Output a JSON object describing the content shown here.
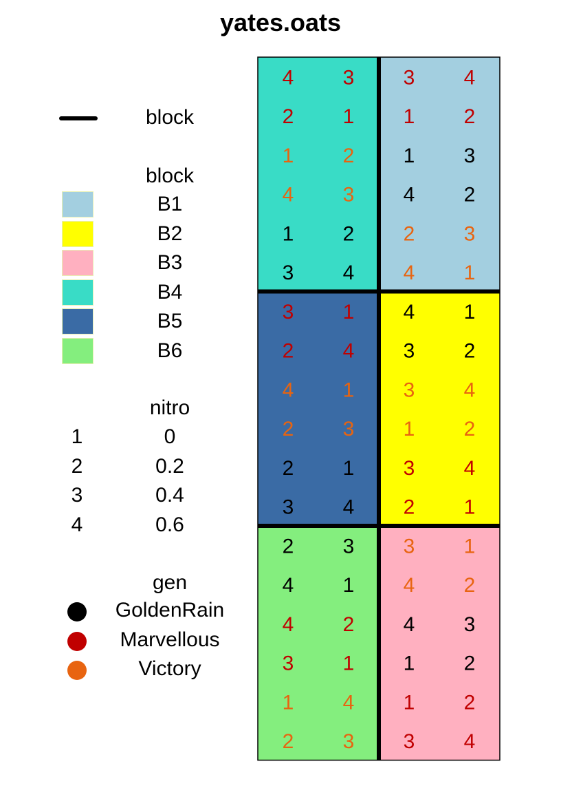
{
  "title": "yates.oats",
  "legend": {
    "block_line": {
      "label": "block"
    },
    "block": {
      "title": "block",
      "items": [
        {
          "label": "B1",
          "color": "#a3cfe0"
        },
        {
          "label": "B2",
          "color": "#ffff00"
        },
        {
          "label": "B3",
          "color": "#ffb0c0"
        },
        {
          "label": "B4",
          "color": "#39dcc6"
        },
        {
          "label": "B5",
          "color": "#3a6ba5"
        },
        {
          "label": "B6",
          "color": "#84ee7e"
        }
      ]
    },
    "nitro": {
      "title": "nitro",
      "items": [
        {
          "code": "1",
          "value": "0"
        },
        {
          "code": "2",
          "value": "0.2"
        },
        {
          "code": "3",
          "value": "0.4"
        },
        {
          "code": "4",
          "value": "0.6"
        }
      ]
    },
    "gen": {
      "title": "gen",
      "items": [
        {
          "label": "GoldenRain",
          "color": "#000000"
        },
        {
          "label": "Marvellous",
          "color": "#c00000"
        },
        {
          "label": "Victory",
          "color": "#e86410"
        }
      ]
    }
  },
  "grid": {
    "blocks": [
      {
        "name": "B4",
        "color": "#39dcc6",
        "cells": [
          [
            "4",
            "M"
          ],
          [
            "3",
            "M"
          ],
          [
            "2",
            "M"
          ],
          [
            "1",
            "M"
          ],
          [
            "1",
            "V"
          ],
          [
            "2",
            "V"
          ],
          [
            "4",
            "V"
          ],
          [
            "3",
            "V"
          ],
          [
            "1",
            "G"
          ],
          [
            "2",
            "G"
          ],
          [
            "3",
            "G"
          ],
          [
            "4",
            "G"
          ]
        ]
      },
      {
        "name": "B1",
        "color": "#a3cfe0",
        "cells": [
          [
            "3",
            "M"
          ],
          [
            "4",
            "M"
          ],
          [
            "1",
            "M"
          ],
          [
            "2",
            "M"
          ],
          [
            "1",
            "G"
          ],
          [
            "3",
            "G"
          ],
          [
            "4",
            "G"
          ],
          [
            "2",
            "G"
          ],
          [
            "2",
            "V"
          ],
          [
            "3",
            "V"
          ],
          [
            "4",
            "V"
          ],
          [
            "1",
            "V"
          ]
        ]
      },
      {
        "name": "B5",
        "color": "#3a6ba5",
        "cells": [
          [
            "3",
            "M"
          ],
          [
            "1",
            "M"
          ],
          [
            "2",
            "M"
          ],
          [
            "4",
            "M"
          ],
          [
            "4",
            "V"
          ],
          [
            "1",
            "V"
          ],
          [
            "2",
            "V"
          ],
          [
            "3",
            "V"
          ],
          [
            "2",
            "G"
          ],
          [
            "1",
            "G"
          ],
          [
            "3",
            "G"
          ],
          [
            "4",
            "G"
          ]
        ]
      },
      {
        "name": "B2",
        "color": "#ffff00",
        "cells": [
          [
            "4",
            "G"
          ],
          [
            "1",
            "G"
          ],
          [
            "3",
            "G"
          ],
          [
            "2",
            "G"
          ],
          [
            "3",
            "V"
          ],
          [
            "4",
            "V"
          ],
          [
            "1",
            "V"
          ],
          [
            "2",
            "V"
          ],
          [
            "3",
            "M"
          ],
          [
            "4",
            "M"
          ],
          [
            "2",
            "M"
          ],
          [
            "1",
            "M"
          ]
        ]
      },
      {
        "name": "B6",
        "color": "#84ee7e",
        "cells": [
          [
            "2",
            "G"
          ],
          [
            "3",
            "G"
          ],
          [
            "4",
            "G"
          ],
          [
            "1",
            "G"
          ],
          [
            "4",
            "M"
          ],
          [
            "2",
            "M"
          ],
          [
            "3",
            "M"
          ],
          [
            "1",
            "M"
          ],
          [
            "1",
            "V"
          ],
          [
            "4",
            "V"
          ],
          [
            "2",
            "V"
          ],
          [
            "3",
            "V"
          ]
        ]
      },
      {
        "name": "B3",
        "color": "#ffb0c0",
        "cells": [
          [
            "3",
            "V"
          ],
          [
            "1",
            "V"
          ],
          [
            "4",
            "V"
          ],
          [
            "2",
            "V"
          ],
          [
            "4",
            "G"
          ],
          [
            "3",
            "G"
          ],
          [
            "1",
            "G"
          ],
          [
            "2",
            "G"
          ],
          [
            "1",
            "M"
          ],
          [
            "2",
            "M"
          ],
          [
            "3",
            "M"
          ],
          [
            "4",
            "M"
          ]
        ]
      }
    ],
    "gen_colors": {
      "G": "#000000",
      "M": "#c00000",
      "V": "#e86410"
    }
  }
}
